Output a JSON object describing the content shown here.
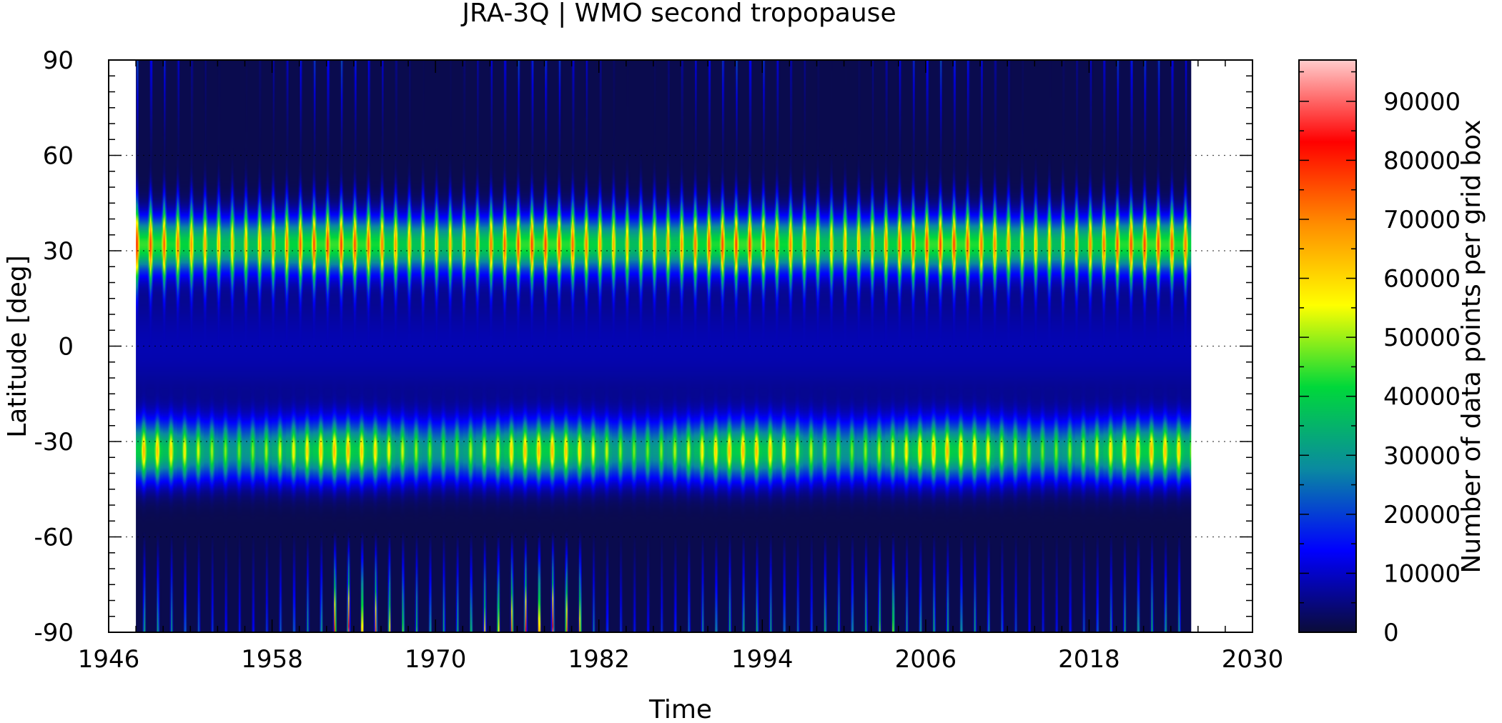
{
  "chart_data": {
    "type": "heatmap",
    "title": "JRA-3Q | WMO second tropopause",
    "xlabel": "Time",
    "ylabel": "Latitude [deg]",
    "colorbar_label": "Number of data points per grid box",
    "xlim": [
      1946,
      2030
    ],
    "ylim": [
      -90,
      90
    ],
    "x_ticks": [
      "1946",
      "1958",
      "1970",
      "1982",
      "1994",
      "2006",
      "2018",
      "2030"
    ],
    "y_ticks": [
      "-90",
      "-60",
      "-30",
      "0",
      "30",
      "60",
      "90"
    ],
    "colorbar_range": [
      0,
      97000
    ],
    "colorbar_ticks": [
      "0",
      "10000",
      "20000",
      "30000",
      "40000",
      "50000",
      "60000",
      "70000",
      "80000",
      "90000"
    ],
    "colormap": [
      "#0b0c38",
      "#0000ff",
      "#0a8aa0",
      "#00d83a",
      "#ffff00",
      "#ff8c00",
      "#ff0000",
      "#ffcccc"
    ],
    "data_time_range": [
      1948,
      2025.5
    ],
    "grid": "dotted lines at 30-degree latitude steps",
    "features": {
      "nh_band_latitude": 32,
      "nh_band_peak_value": 70000,
      "sh_band_latitude": -33,
      "sh_band_peak_value": 55000,
      "polar_spikes_peak_value": 90000,
      "seasonal_cycle": "annual"
    }
  }
}
